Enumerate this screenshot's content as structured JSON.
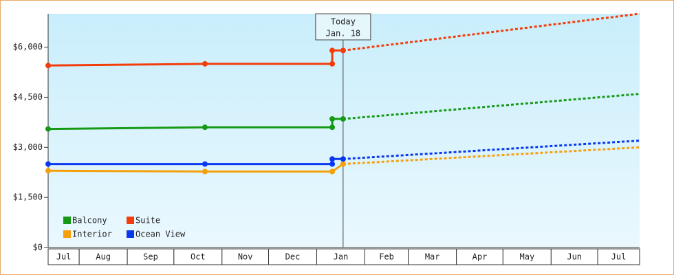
{
  "chart_data": {
    "type": "line",
    "xlim": [
      11,
      392
    ],
    "xticks": [
      {
        "value": 0,
        "label": "Jul"
      },
      {
        "value": 31,
        "label": "Aug"
      },
      {
        "value": 62,
        "label": "Sep"
      },
      {
        "value": 92,
        "label": "Oct"
      },
      {
        "value": 123,
        "label": "Nov"
      },
      {
        "value": 153,
        "label": "Dec"
      },
      {
        "value": 184,
        "label": "Jan"
      },
      {
        "value": 215,
        "label": "Feb"
      },
      {
        "value": 243,
        "label": "Mar"
      },
      {
        "value": 274,
        "label": "Apr"
      },
      {
        "value": 304,
        "label": "May"
      },
      {
        "value": 335,
        "label": "Jun"
      },
      {
        "value": 365,
        "label": "Jul"
      }
    ],
    "ylim": [
      0,
      7000
    ],
    "yticks": [
      {
        "value": 0,
        "label": "$0"
      },
      {
        "value": 1500,
        "label": "$1,500"
      },
      {
        "value": 3000,
        "label": "$3,000"
      },
      {
        "value": 4500,
        "label": "$4,500"
      },
      {
        "value": 6000,
        "label": "$6,000"
      }
    ],
    "annotation": {
      "lines": [
        "Today",
        "Jan. 18"
      ],
      "x": 201
    },
    "legend": "lower left",
    "series": [
      {
        "name": "Balcony",
        "color": "#159a15",
        "x": [
          11,
          112,
          194,
          194,
          201,
          392
        ],
        "values": [
          3550,
          3600,
          3600,
          3850,
          3850,
          4600
        ]
      },
      {
        "name": "Interior",
        "color": "#f5a00a",
        "x": [
          11,
          112,
          194,
          201,
          392
        ],
        "values": [
          2300,
          2275,
          2275,
          2500,
          3000
        ]
      },
      {
        "name": "Suite",
        "color": "#f23c0a",
        "x": [
          11,
          112,
          194,
          194,
          201,
          392
        ],
        "values": [
          5450,
          5500,
          5500,
          5900,
          5900,
          7000
        ]
      },
      {
        "name": "Ocean View",
        "color": "#0a38f0",
        "x": [
          11,
          112,
          194,
          194,
          201,
          392
        ],
        "values": [
          2500,
          2500,
          2500,
          2650,
          2650,
          3200
        ]
      }
    ]
  }
}
